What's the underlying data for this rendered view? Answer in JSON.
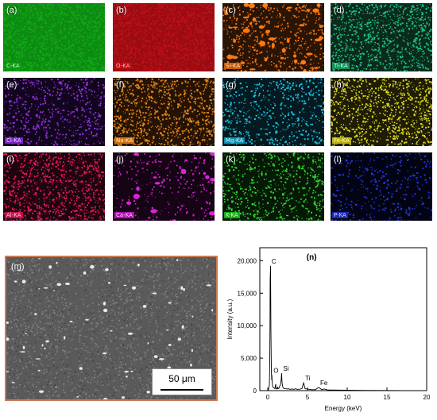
{
  "figure": {
    "maps": [
      {
        "panel": "(a)",
        "element_label": "C-KA",
        "color": "#16c21a",
        "bg": "#0d8a12",
        "label_bg": "#0f9a14",
        "label_color": "#b8ffb8",
        "density": "full"
      },
      {
        "panel": "(b)",
        "element_label": "O-KA",
        "color": "#e0141c",
        "bg": "#9a0c12",
        "label_bg": "#b80e14",
        "label_color": "#ffb8b8",
        "density": "full"
      },
      {
        "panel": "(c)",
        "element_label": "Si-KA",
        "color": "#ff7a10",
        "bg": "#2a1404",
        "label_bg": "#c45a08",
        "label_color": "#ffe0c0",
        "density": "clusters"
      },
      {
        "panel": "(d)",
        "element_label": "Ti-KA",
        "color": "#1fc888",
        "bg": "#0a2a1c",
        "label_bg": "#12905c",
        "label_color": "#c8ffe8",
        "density": "high"
      },
      {
        "panel": "(e)",
        "element_label": "Cl-KA",
        "color": "#9a32e6",
        "bg": "#12061e",
        "label_bg": "#7a22c8",
        "label_color": "#ecd8ff",
        "density": "medium"
      },
      {
        "panel": "(f)",
        "element_label": "Na-KA",
        "color": "#f08a18",
        "bg": "#241304",
        "label_bg": "#d07010",
        "label_color": "#ffe8c8",
        "density": "high"
      },
      {
        "panel": "(g)",
        "element_label": "Mg-KA",
        "color": "#1cc8e8",
        "bg": "#041a20",
        "label_bg": "#1090b0",
        "label_color": "#c8f4ff",
        "density": "medium"
      },
      {
        "panel": "(h)",
        "element_label": "Fe-KA",
        "color": "#e8e020",
        "bg": "#1e1c04",
        "label_bg": "#b8b010",
        "label_color": "#fffcc8",
        "density": "high"
      },
      {
        "panel": "(i)",
        "element_label": "Al-KA",
        "color": "#ee1a5a",
        "bg": "#1e0410",
        "label_bg": "#c0104a",
        "label_color": "#ffc8d8",
        "density": "high"
      },
      {
        "panel": "(j)",
        "element_label": "Ca-KA",
        "color": "#e020d8",
        "bg": "#140414",
        "label_bg": "#b010b0",
        "label_color": "#ffd0ff",
        "density": "low_clusters"
      },
      {
        "panel": "(k)",
        "element_label": "K-KA",
        "color": "#30e030",
        "bg": "#061806",
        "label_bg": "#18a818",
        "label_color": "#d0ffd0",
        "density": "medium"
      },
      {
        "panel": "(l)",
        "element_label": "P-KA",
        "color": "#2a3ae8",
        "bg": "#020414",
        "label_bg": "#1c28b0",
        "label_color": "#d0d8ff",
        "density": "low"
      }
    ],
    "sem": {
      "panel": "(m)",
      "scale_bar": "50 μm",
      "border_color": "#c97a55"
    },
    "spectrum": {
      "panel": "(n)"
    }
  },
  "chart_data": {
    "type": "line",
    "title": "(n)",
    "xlabel": "Energy (keV)",
    "ylabel": "Intensity (a.u.)",
    "xlim": [
      -1,
      20
    ],
    "ylim": [
      0,
      22000
    ],
    "x_ticks": [
      0,
      5,
      10,
      15,
      20
    ],
    "y_ticks": [
      0,
      5000,
      10000,
      15000,
      20000
    ],
    "y_tick_labels": [
      "0",
      "5,000",
      "10,000",
      "15,000",
      "20,000"
    ],
    "grid": false,
    "series": [
      {
        "x": [
          0,
          0.1,
          0.2,
          0.25,
          0.28,
          0.3,
          0.35,
          0.4,
          0.45,
          0.5,
          0.52,
          0.55,
          0.6,
          0.7,
          0.8,
          0.9,
          1.0,
          1.05,
          1.1,
          1.2,
          1.25,
          1.3,
          1.4,
          1.5,
          1.6,
          1.7,
          1.74,
          1.8,
          1.9,
          2.0,
          2.2,
          2.5,
          2.6,
          2.8,
          3.0,
          3.3,
          3.5,
          3.7,
          4.0,
          4.3,
          4.51,
          4.7,
          4.93,
          5.2,
          5.5,
          6.0,
          6.4,
          6.8,
          7.1,
          7.5,
          8.0,
          9.0,
          10.0,
          12.0,
          15.0,
          20.0
        ],
        "y": [
          0,
          200,
          800,
          4000,
          10000,
          17000,
          19200,
          9000,
          3000,
          1600,
          2400,
          1400,
          700,
          500,
          400,
          300,
          1000,
          300,
          250,
          300,
          600,
          300,
          350,
          700,
          900,
          1800,
          2700,
          1200,
          500,
          350,
          300,
          250,
          300,
          200,
          250,
          200,
          300,
          200,
          220,
          300,
          1200,
          300,
          250,
          200,
          150,
          150,
          500,
          150,
          250,
          120,
          100,
          80,
          60,
          40,
          20,
          0
        ]
      }
    ],
    "peak_labels": [
      {
        "label": "C",
        "x": 0.28,
        "y": 19200
      },
      {
        "label": "O",
        "x": 0.52,
        "y": 2400
      },
      {
        "label": "Si",
        "x": 1.74,
        "y": 2700
      },
      {
        "label": "Ti",
        "x": 4.51,
        "y": 1200
      },
      {
        "label": "Fe",
        "x": 6.4,
        "y": 500
      }
    ]
  }
}
